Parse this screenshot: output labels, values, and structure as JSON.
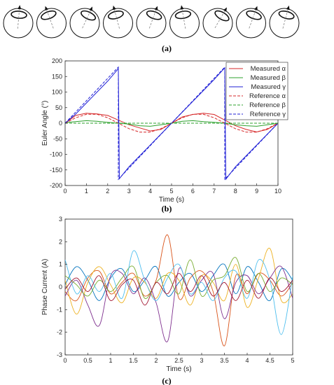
{
  "panel_labels": {
    "a": "(a)",
    "b": "(b)",
    "c": "(c)"
  },
  "chart_data": [
    {
      "id": "a",
      "type": "diagram",
      "frames": 9,
      "tilts_deg": [
        5,
        -20,
        25,
        -15,
        20,
        -10,
        30,
        20,
        15
      ]
    },
    {
      "id": "b",
      "type": "line",
      "title": "",
      "xlabel": "Time (s)",
      "ylabel": "Euler Angle (°)",
      "xlim": [
        0,
        10
      ],
      "ylim": [
        -200,
        200
      ],
      "xticks": [
        "0",
        "1",
        "2",
        "3",
        "4",
        "5",
        "6",
        "7",
        "8",
        "9",
        "10"
      ],
      "yticks": [
        "200",
        "150",
        "100",
        "50",
        "0",
        "-50",
        "-100",
        "-150",
        "-200"
      ],
      "grid": false,
      "legend_position": "top-right",
      "series": [
        {
          "name": "Measured α",
          "color": "#d62728",
          "dash": "solid",
          "x": [
            0,
            0.5,
            1,
            1.5,
            2,
            2.5,
            3,
            3.5,
            4,
            4.5,
            5,
            5.5,
            6,
            6.5,
            7,
            7.5,
            8,
            8.5,
            9,
            9.5,
            10
          ],
          "y": [
            0,
            25,
            32,
            30,
            25,
            10,
            -5,
            -15,
            -25,
            -20,
            0,
            20,
            28,
            32,
            28,
            10,
            -8,
            -20,
            -28,
            -20,
            0
          ]
        },
        {
          "name": "Measured β",
          "color": "#2ca02c",
          "dash": "solid",
          "x": [
            0,
            0.5,
            1,
            1.5,
            2,
            2.5,
            3,
            3.5,
            4,
            4.5,
            5,
            5.5,
            6,
            6.5,
            7,
            7.5,
            8,
            8.5,
            9,
            9.5,
            10
          ],
          "y": [
            2,
            5,
            8,
            6,
            3,
            0,
            -3,
            -8,
            -10,
            -5,
            0,
            6,
            8,
            5,
            3,
            0,
            -5,
            -8,
            -10,
            -5,
            0
          ]
        },
        {
          "name": "Measured γ",
          "color": "#1f1fd6",
          "dash": "solid",
          "x": [
            0,
            0.5,
            1,
            1.5,
            2,
            2.5,
            2.55,
            3,
            3.5,
            4,
            4.5,
            5,
            5.5,
            6,
            6.5,
            7,
            7.5,
            7.55,
            8,
            8.5,
            9,
            9.5,
            10
          ],
          "y": [
            0,
            30,
            65,
            100,
            135,
            175,
            -178,
            -140,
            -105,
            -70,
            -35,
            0,
            35,
            70,
            105,
            140,
            178,
            -180,
            -140,
            -105,
            -70,
            -35,
            0
          ]
        },
        {
          "name": "Reference α",
          "color": "#d62728",
          "dash": "dashed",
          "x": [
            0,
            0.5,
            1,
            1.5,
            2,
            2.5,
            3,
            3.5,
            4,
            4.5,
            5,
            5.5,
            6,
            6.5,
            7,
            7.5,
            8,
            8.5,
            9,
            9.5,
            10
          ],
          "y": [
            0,
            17.6,
            28.5,
            28.5,
            17.6,
            0,
            -17.6,
            -28.5,
            -28.5,
            -17.6,
            0,
            17.6,
            28.5,
            28.5,
            17.6,
            0,
            -17.6,
            -28.5,
            -28.5,
            -17.6,
            0
          ]
        },
        {
          "name": "Reference β",
          "color": "#2ca02c",
          "dash": "dashed",
          "x": [
            0,
            10
          ],
          "y": [
            0,
            0
          ]
        },
        {
          "name": "Reference γ",
          "color": "#1f1fd6",
          "dash": "dashed",
          "x": [
            0,
            2.5,
            2.5,
            7.5,
            7.5,
            10
          ],
          "y": [
            0,
            180,
            -180,
            180,
            -180,
            0
          ]
        }
      ]
    },
    {
      "id": "c",
      "type": "line",
      "title": "",
      "xlabel": "Time (s)",
      "ylabel": "Phase Current (A)",
      "xlim": [
        0,
        5
      ],
      "ylim": [
        -3,
        3
      ],
      "xticks": [
        "0",
        "0.5",
        "1",
        "1.5",
        "2",
        "2.5",
        "3",
        "3.5",
        "4",
        "4.5",
        "5"
      ],
      "yticks": [
        "3",
        "2",
        "1",
        "0",
        "-1",
        "-2",
        "-3"
      ],
      "grid": false,
      "series": [
        {
          "color": "#0072bd",
          "x": [
            0,
            0.25,
            0.5,
            0.75,
            1,
            1.25,
            1.5,
            1.75,
            2,
            2.25,
            2.5,
            2.75,
            3,
            3.25,
            3.5,
            3.75,
            4,
            4.25,
            4.5,
            4.75,
            5
          ],
          "y": [
            0.1,
            0.9,
            0.3,
            -0.6,
            0.4,
            0.8,
            -0.2,
            0.3,
            0.9,
            -0.4,
            0.2,
            0.6,
            -0.2,
            0.5,
            1.0,
            -0.3,
            0.9,
            0.2,
            -0.6,
            0.8,
            0.3
          ]
        },
        {
          "color": "#d95319",
          "x": [
            0,
            0.25,
            0.5,
            0.75,
            1,
            1.25,
            1.5,
            1.75,
            2,
            2.25,
            2.5,
            2.75,
            3,
            3.25,
            3.5,
            3.75,
            4,
            4.25,
            4.5,
            4.75,
            5
          ],
          "y": [
            -0.2,
            -0.6,
            0.4,
            0.7,
            -0.3,
            0.2,
            0.6,
            -0.4,
            0.3,
            2.3,
            -0.5,
            0.4,
            0.7,
            -0.2,
            -2.6,
            0.5,
            -0.3,
            0.6,
            0.3,
            -0.4,
            0.2
          ]
        },
        {
          "color": "#edb120",
          "x": [
            0,
            0.25,
            0.5,
            0.75,
            1,
            1.25,
            1.5,
            1.75,
            2,
            2.25,
            2.5,
            2.75,
            3,
            3.25,
            3.5,
            3.75,
            4,
            4.25,
            4.5,
            4.75,
            5
          ],
          "y": [
            0.3,
            -1.2,
            0.2,
            0.9,
            0.1,
            -0.7,
            0.4,
            0.2,
            -0.5,
            0.6,
            0.3,
            -0.8,
            0.5,
            0.2,
            -0.6,
            1.0,
            -0.9,
            0.4,
            1.7,
            -0.6,
            -0.3
          ]
        },
        {
          "color": "#7e2f8e",
          "x": [
            0,
            0.25,
            0.5,
            0.75,
            1,
            1.25,
            1.5,
            1.75,
            2,
            2.25,
            2.5,
            2.75,
            3,
            3.25,
            3.5,
            3.75,
            4,
            4.25,
            4.5,
            4.75,
            5
          ],
          "y": [
            -0.4,
            0.3,
            -0.8,
            -1.7,
            0.5,
            0.6,
            -0.3,
            0.4,
            -0.7,
            -2.4,
            0.8,
            -0.4,
            0.3,
            0.6,
            -1.4,
            0.2,
            0.5,
            -0.3,
            0.4,
            0.9,
            -0.5
          ]
        },
        {
          "color": "#77ac30",
          "x": [
            0,
            0.25,
            0.5,
            0.75,
            1,
            1.25,
            1.5,
            1.75,
            2,
            2.25,
            2.5,
            2.75,
            3,
            3.25,
            3.5,
            3.75,
            4,
            4.25,
            4.5,
            4.75,
            5
          ],
          "y": [
            0.5,
            0.1,
            -0.4,
            0.3,
            -0.2,
            0.4,
            0.9,
            -0.5,
            0.2,
            0.5,
            -0.3,
            1.2,
            -0.4,
            0.3,
            0.5,
            1.3,
            -0.2,
            0.6,
            -0.2,
            0.4,
            0.1
          ]
        },
        {
          "color": "#4dbeee",
          "x": [
            0,
            0.25,
            0.5,
            0.75,
            1,
            1.25,
            1.5,
            1.75,
            2,
            2.25,
            2.5,
            2.75,
            3,
            3.25,
            3.5,
            3.75,
            4,
            4.25,
            4.5,
            4.75,
            5
          ],
          "y": [
            1.2,
            -0.3,
            0.5,
            -0.2,
            0.6,
            -0.5,
            1.6,
            0.3,
            -0.6,
            0.4,
            1.0,
            -0.3,
            0.2,
            -0.6,
            0.4,
            0.7,
            -0.5,
            1.2,
            0.3,
            -2.1,
            0.5
          ]
        },
        {
          "color": "#a2142f",
          "x": [
            0,
            0.25,
            0.5,
            0.75,
            1,
            1.25,
            1.5,
            1.75,
            2,
            2.25,
            2.5,
            2.75,
            3,
            3.25,
            3.5,
            3.75,
            4,
            4.25,
            4.5,
            4.75,
            5
          ],
          "y": [
            -0.1,
            0.4,
            -0.2,
            0.5,
            -0.6,
            0.1,
            0.3,
            -0.8,
            0.2,
            -0.3,
            0.6,
            -0.2,
            0.5,
            -0.4,
            0.2,
            -0.6,
            0.3,
            -0.5,
            0.4,
            -0.2,
            0.3
          ]
        }
      ]
    }
  ]
}
